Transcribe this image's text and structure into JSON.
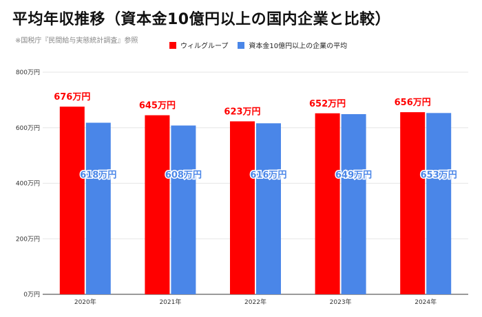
{
  "title": "平均年収推移（資本金10億円以上の国内企業と比較）",
  "source": "※国税庁『民間給与実態統計調査』参照",
  "colors": {
    "series1": "#ff0000",
    "series2": "#4a86e8"
  },
  "chart_data": {
    "type": "bar",
    "categories": [
      "2020年",
      "2021年",
      "2022年",
      "2023年",
      "2024年"
    ],
    "series": [
      {
        "name": "ウィルグループ",
        "values": [
          676,
          645,
          623,
          652,
          656
        ],
        "labels": [
          "676万円",
          "645万円",
          "623万円",
          "652万円",
          "656万円"
        ]
      },
      {
        "name": "資本金10億円以上の企業の平均",
        "values": [
          618,
          608,
          616,
          649,
          653
        ],
        "labels": [
          "618万円",
          "608万円",
          "616万円",
          "649万円",
          "653万円"
        ]
      }
    ],
    "ylim": [
      0,
      800
    ],
    "yticks": [
      0,
      200,
      400,
      600,
      800
    ],
    "ytick_labels": [
      "0万円",
      "200万円",
      "400万円",
      "600万円",
      "800万円"
    ],
    "grid": true,
    "legend": "top-center"
  }
}
